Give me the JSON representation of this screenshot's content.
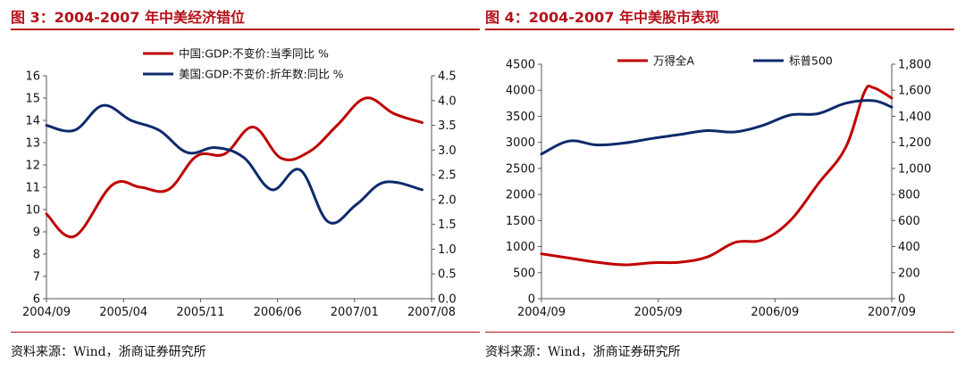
{
  "colors": {
    "accent_red": "#b5121b",
    "series_red": "#c00000",
    "series_navy": "#0d2a6b"
  },
  "left": {
    "title": "图 3：2004-2007 年中美经济错位",
    "source": "资料来源：Wind，浙商证券研究所"
  },
  "right": {
    "title": "图 4：2004-2007 年中美股市表现",
    "source": "资料来源：Wind，浙商证券研究所"
  },
  "chart_data": [
    {
      "type": "line",
      "legend_placement": "top",
      "grid": false,
      "x_ticks": [
        "2004/09",
        "2005/04",
        "2005/11",
        "2006/06",
        "2007/01",
        "2007/08"
      ],
      "y_left_ticks": [
        "6",
        "7",
        "8",
        "9",
        "10",
        "11",
        "12",
        "13",
        "14",
        "15",
        "16"
      ],
      "y_left_range": [
        6,
        16
      ],
      "y_right_ticks": [
        "0.0",
        "0.5",
        "1.0",
        "1.5",
        "2.0",
        "2.5",
        "3.0",
        "3.5",
        "4.0",
        "4.5"
      ],
      "y_right_range": [
        0,
        4.5
      ],
      "x_range": [
        0,
        41
      ],
      "series": [
        {
          "name": "中国:GDP:不变价:当季同比 %",
          "axis": "left",
          "color": "#c00000",
          "points": [
            [
              0,
              9.8
            ],
            [
              3,
              8.8
            ],
            [
              7,
              11.1
            ],
            [
              10,
              11.0
            ],
            [
              13,
              10.9
            ],
            [
              16,
              12.4
            ],
            [
              19,
              12.5
            ],
            [
              22,
              13.7
            ],
            [
              25,
              12.3
            ],
            [
              28,
              12.6
            ],
            [
              31,
              13.8
            ],
            [
              34,
              15.0
            ],
            [
              37,
              14.3
            ],
            [
              40,
              13.9
            ]
          ]
        },
        {
          "name": "美国:GDP:不变价:折年数:同比 %",
          "axis": "right",
          "color": "#0d2a6b",
          "points": [
            [
              0,
              3.5
            ],
            [
              3,
              3.4
            ],
            [
              6,
              3.9
            ],
            [
              9,
              3.6
            ],
            [
              12,
              3.4
            ],
            [
              15,
              2.95
            ],
            [
              18,
              3.05
            ],
            [
              21,
              2.85
            ],
            [
              24,
              2.2
            ],
            [
              27,
              2.6
            ],
            [
              30,
              1.55
            ],
            [
              33,
              1.9
            ],
            [
              36,
              2.35
            ],
            [
              40,
              2.2
            ]
          ]
        }
      ]
    },
    {
      "type": "line",
      "legend_placement": "top",
      "grid": false,
      "x_ticks": [
        "2004/09",
        "2005/09",
        "2006/09",
        "2007/09"
      ],
      "y_left_ticks": [
        "0",
        "500",
        "1000",
        "1500",
        "2000",
        "2500",
        "3000",
        "3500",
        "4000",
        "4500"
      ],
      "y_left_range": [
        0,
        4500
      ],
      "y_right_ticks": [
        "0",
        "200",
        "400",
        "600",
        "800",
        "1,000",
        "1,200",
        "1,400",
        "1,600",
        "1,800"
      ],
      "y_right_range": [
        0,
        1800
      ],
      "x_range": [
        0,
        38
      ],
      "series": [
        {
          "name": "万得全A",
          "axis": "left",
          "color": "#c00000",
          "points": [
            [
              0,
              860
            ],
            [
              3,
              780
            ],
            [
              6,
              700
            ],
            [
              9,
              650
            ],
            [
              12,
              690
            ],
            [
              15,
              700
            ],
            [
              18,
              800
            ],
            [
              21,
              1080
            ],
            [
              24,
              1130
            ],
            [
              27,
              1500
            ],
            [
              30,
              2200
            ],
            [
              33,
              2900
            ],
            [
              35,
              3950
            ],
            [
              36,
              4050
            ],
            [
              38,
              3850
            ]
          ]
        },
        {
          "name": "标普500",
          "axis": "right",
          "color": "#0d2a6b",
          "points": [
            [
              0,
              1110
            ],
            [
              3,
              1210
            ],
            [
              6,
              1180
            ],
            [
              9,
              1195
            ],
            [
              12,
              1230
            ],
            [
              15,
              1260
            ],
            [
              18,
              1290
            ],
            [
              21,
              1280
            ],
            [
              24,
              1330
            ],
            [
              27,
              1410
            ],
            [
              30,
              1420
            ],
            [
              33,
              1500
            ],
            [
              36,
              1520
            ],
            [
              38,
              1470
            ]
          ]
        }
      ]
    }
  ]
}
